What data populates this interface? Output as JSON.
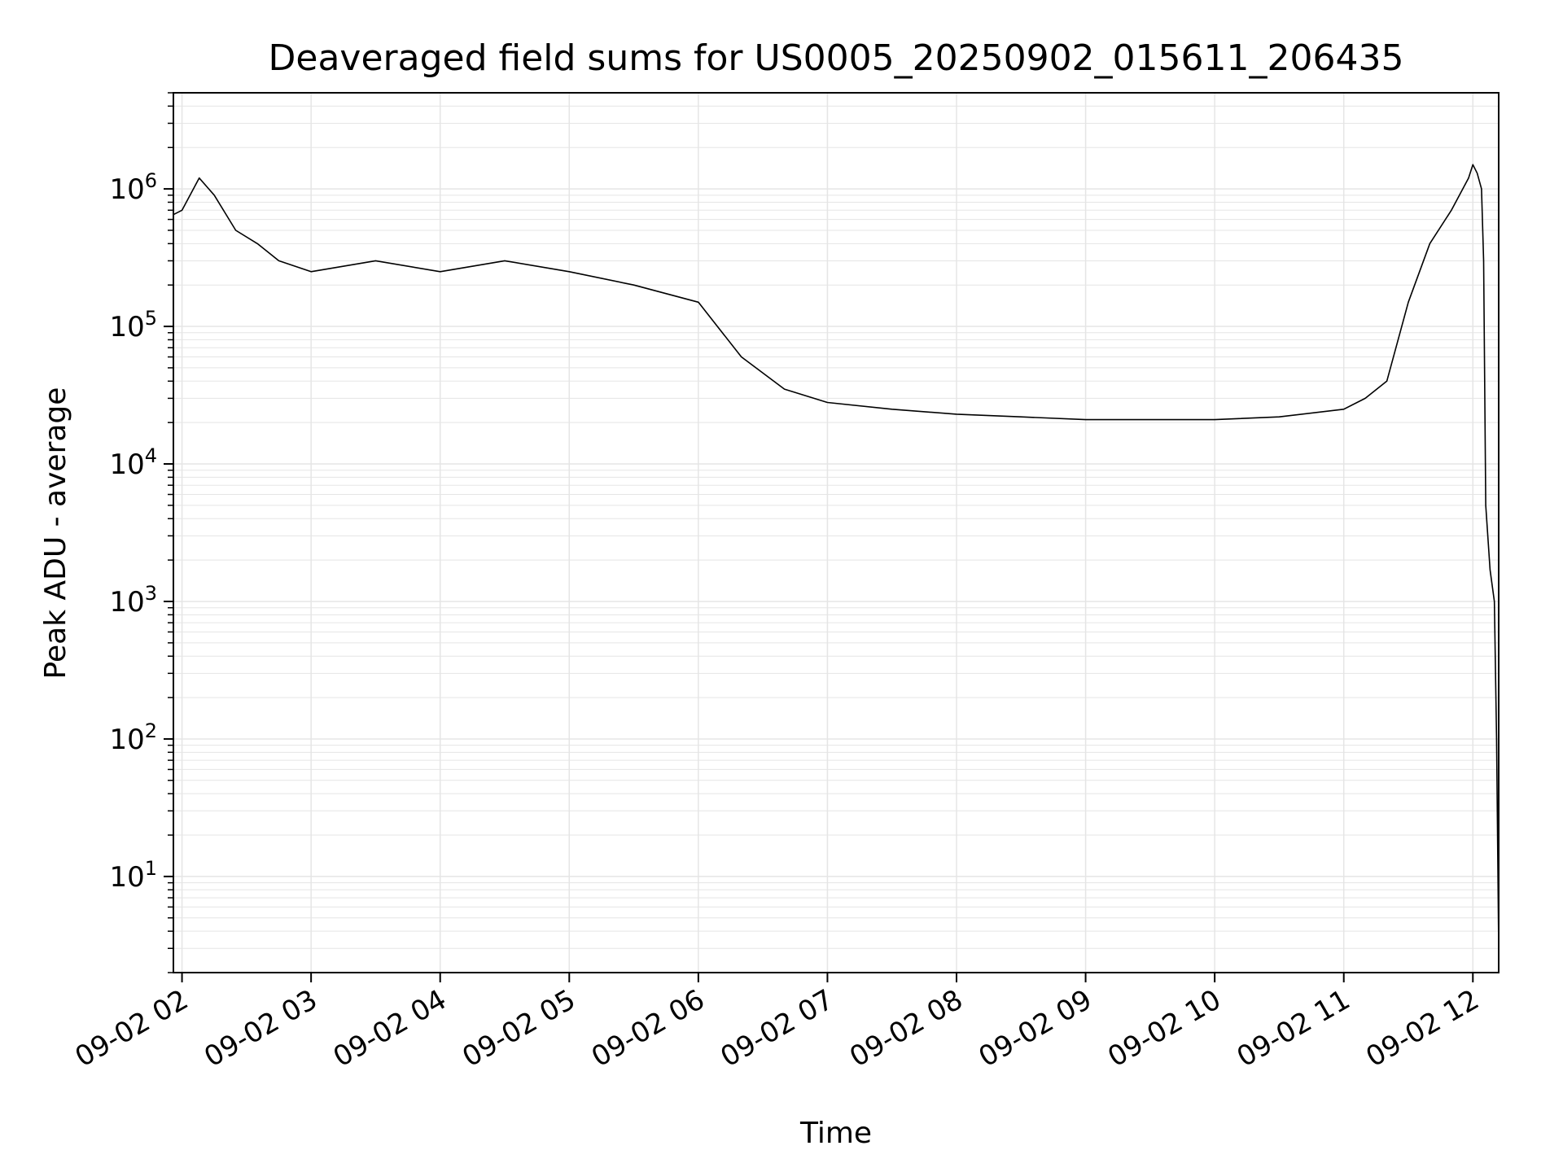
{
  "chart_data": {
    "type": "line",
    "title": "Deaveraged field sums for US0005_20250902_015611_206435",
    "xlabel": "Time",
    "ylabel": "Peak ADU - average",
    "yscale": "log",
    "ylim": [
      2,
      5000000
    ],
    "grid": true,
    "xlim": [
      "2025-09-02 01:56",
      "2025-09-02 12:12"
    ],
    "x_tick_labels": [
      "09-02 02",
      "09-02 03",
      "09-02 04",
      "09-02 05",
      "09-02 06",
      "09-02 07",
      "09-02 08",
      "09-02 09",
      "09-02 10",
      "09-02 11",
      "09-02 12"
    ],
    "y_ticks": [
      {
        "value": 10,
        "base": "10",
        "exp": "1"
      },
      {
        "value": 100,
        "base": "10",
        "exp": "2"
      },
      {
        "value": 1000,
        "base": "10",
        "exp": "3"
      },
      {
        "value": 10000,
        "base": "10",
        "exp": "4"
      },
      {
        "value": 100000,
        "base": "10",
        "exp": "5"
      },
      {
        "value": 1000000,
        "base": "10",
        "exp": "6"
      }
    ],
    "line_color": "#000000",
    "grid_color": "#e5e5e5",
    "series": [
      {
        "x": [
          "2025-09-02 01:56",
          "2025-09-02 02:00",
          "2025-09-02 02:08",
          "2025-09-02 02:15",
          "2025-09-02 02:25",
          "2025-09-02 02:35",
          "2025-09-02 02:45",
          "2025-09-02 03:00",
          "2025-09-02 03:30",
          "2025-09-02 04:00",
          "2025-09-02 04:30",
          "2025-09-02 05:00",
          "2025-09-02 05:30",
          "2025-09-02 06:00",
          "2025-09-02 06:20",
          "2025-09-02 06:40",
          "2025-09-02 07:00",
          "2025-09-02 07:30",
          "2025-09-02 08:00",
          "2025-09-02 08:30",
          "2025-09-02 09:00",
          "2025-09-02 09:30",
          "2025-09-02 10:00",
          "2025-09-02 10:30",
          "2025-09-02 11:00",
          "2025-09-02 11:10",
          "2025-09-02 11:20",
          "2025-09-02 11:30",
          "2025-09-02 11:40",
          "2025-09-02 11:50",
          "2025-09-02 11:58",
          "2025-09-02 12:00",
          "2025-09-02 12:02",
          "2025-09-02 12:04",
          "2025-09-02 12:05",
          "2025-09-02 12:06",
          "2025-09-02 12:08",
          "2025-09-02 12:10",
          "2025-09-02 12:11",
          "2025-09-02 12:12"
        ],
        "y": [
          650000,
          700000,
          1200000,
          900000,
          500000,
          400000,
          300000,
          250000,
          300000,
          250000,
          300000,
          250000,
          200000,
          150000,
          60000,
          35000,
          28000,
          25000,
          23000,
          22000,
          21000,
          21000,
          21000,
          22000,
          25000,
          30000,
          40000,
          150000,
          400000,
          700000,
          1200000,
          1500000,
          1300000,
          1000000,
          300000,
          5000,
          1700,
          1000,
          100,
          3
        ]
      }
    ],
    "annotations": []
  }
}
